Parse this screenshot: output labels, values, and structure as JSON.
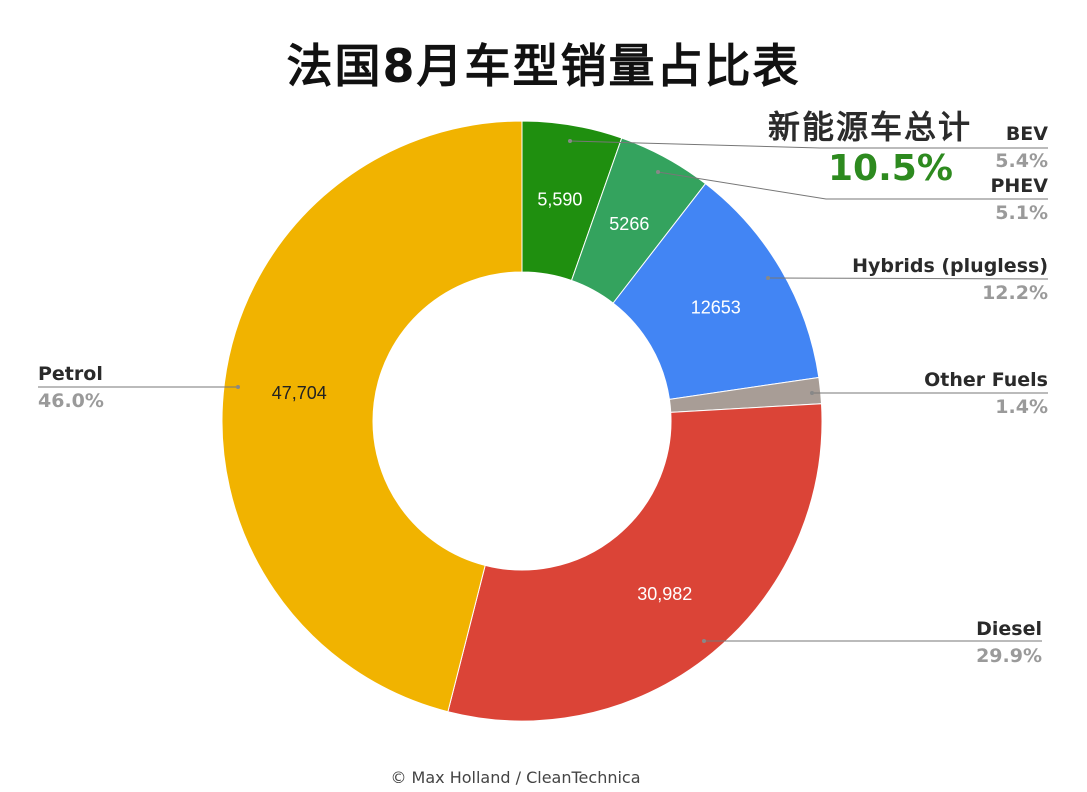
{
  "title": "法国8月车型销量占比表",
  "ev_total": {
    "label": "新能源车总计",
    "value": "10.5%"
  },
  "credit": "© Max Holland / CleanTechnica",
  "chart_data": {
    "type": "pie",
    "donut": true,
    "slices": [
      {
        "label": "BEV",
        "value": 5590,
        "value_text": "5,590",
        "percent": "5.4%",
        "color": "#1f8f0f",
        "text_color": "#ffffff"
      },
      {
        "label": "PHEV",
        "value": 5266,
        "value_text": "5266",
        "percent": "5.1%",
        "color": "#34a35e",
        "text_color": "#ffffff"
      },
      {
        "label": "Hybrids (plugless)",
        "value": 12653,
        "value_text": "12653",
        "percent": "12.2%",
        "color": "#4285f4",
        "text_color": "#ffffff"
      },
      {
        "label": "Other Fuels",
        "value": 1450,
        "value_text": "",
        "percent": "1.4%",
        "color": "#a89d96",
        "text_color": "#ffffff"
      },
      {
        "label": "Diesel",
        "value": 30982,
        "value_text": "30,982",
        "percent": "29.9%",
        "color": "#db4437",
        "text_color": "#ffffff"
      },
      {
        "label": "Petrol",
        "value": 47704,
        "value_text": "47,704",
        "percent": "46.0%",
        "color": "#f1b300",
        "text_color": "#222222"
      }
    ]
  }
}
